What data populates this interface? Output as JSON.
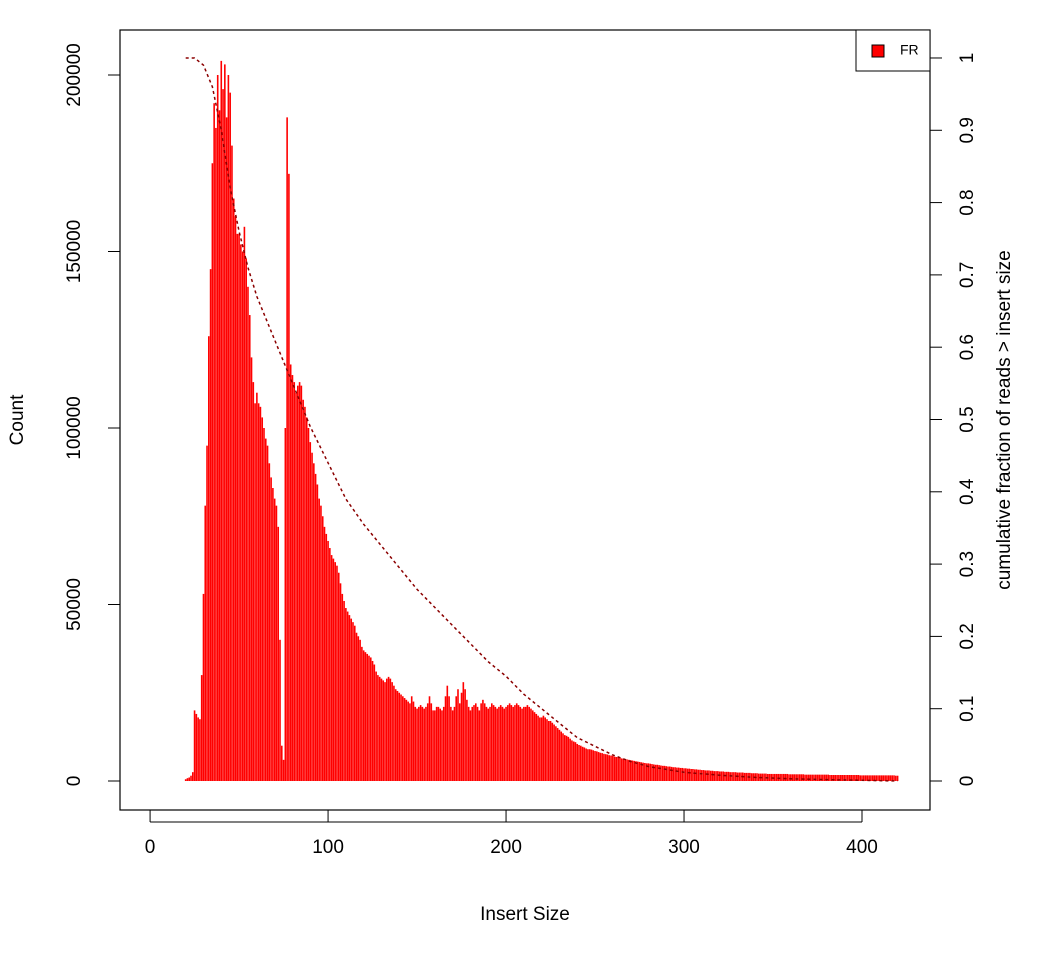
{
  "chart_data": {
    "type": "histogram-line",
    "xlabel": "Insert Size",
    "ylabel": "Count",
    "y2label": "cumulative fraction of reads > insert size",
    "xlim": [
      -16.9,
      438.2
    ],
    "xticks": [
      0,
      100,
      200,
      300,
      400
    ],
    "ylim": [
      -8215,
      212748
    ],
    "yticks": [
      0,
      50000,
      100000,
      150000,
      200000
    ],
    "y2lim": [
      -0.0401,
      1.0387
    ],
    "y2ticks": [
      0,
      0.1,
      0.2,
      0.3,
      0.4,
      0.5,
      0.6,
      0.7,
      0.8,
      0.9,
      1
    ],
    "legend": "top-right",
    "series": [
      {
        "name": "FR",
        "color": "#ff0000",
        "x": [
          20,
          21,
          22,
          23,
          24,
          25,
          26,
          27,
          28,
          29,
          30,
          31,
          32,
          33,
          34,
          35,
          36,
          37,
          38,
          39,
          40,
          41,
          42,
          43,
          44,
          45,
          46,
          47,
          48,
          49,
          50,
          51,
          52,
          53,
          54,
          55,
          56,
          57,
          58,
          59,
          60,
          61,
          62,
          63,
          64,
          65,
          66,
          67,
          68,
          69,
          70,
          71,
          72,
          73,
          74,
          75,
          76,
          77,
          78,
          79,
          80,
          81,
          82,
          83,
          84,
          85,
          86,
          87,
          88,
          89,
          90,
          91,
          92,
          93,
          94,
          95,
          96,
          97,
          98,
          99,
          100,
          101,
          102,
          103,
          104,
          105,
          106,
          107,
          108,
          109,
          110,
          111,
          112,
          113,
          114,
          115,
          116,
          117,
          118,
          119,
          120,
          121,
          122,
          123,
          124,
          125,
          126,
          127,
          128,
          129,
          130,
          131,
          132,
          133,
          134,
          135,
          136,
          137,
          138,
          139,
          140,
          141,
          142,
          143,
          144,
          145,
          146,
          147,
          148,
          149,
          150,
          151,
          152,
          153,
          154,
          155,
          156,
          157,
          158,
          159,
          160,
          161,
          162,
          163,
          164,
          165,
          166,
          167,
          168,
          169,
          170,
          171,
          172,
          173,
          174,
          175,
          176,
          177,
          178,
          179,
          180,
          181,
          182,
          183,
          184,
          185,
          186,
          187,
          188,
          189,
          190,
          191,
          192,
          193,
          194,
          195,
          196,
          197,
          198,
          199,
          200,
          201,
          202,
          203,
          204,
          205,
          206,
          207,
          208,
          209,
          210,
          211,
          212,
          213,
          214,
          215,
          216,
          217,
          218,
          219,
          220,
          221,
          222,
          223,
          224,
          225,
          226,
          227,
          228,
          229,
          230,
          231,
          232,
          233,
          234,
          235,
          236,
          237,
          238,
          239,
          240,
          241,
          242,
          243,
          244,
          245,
          246,
          247,
          248,
          249,
          250,
          251,
          252,
          253,
          254,
          255,
          256,
          257,
          258,
          259,
          260,
          261,
          262,
          263,
          264,
          265,
          266,
          267,
          268,
          269,
          270,
          271,
          272,
          273,
          274,
          275,
          276,
          277,
          278,
          279,
          280,
          281,
          282,
          283,
          284,
          285,
          286,
          287,
          288,
          289,
          290,
          291,
          292,
          293,
          294,
          295,
          296,
          297,
          298,
          299,
          300,
          301,
          302,
          303,
          304,
          305,
          306,
          307,
          308,
          309,
          310,
          311,
          312,
          313,
          314,
          315,
          316,
          317,
          318,
          319,
          320,
          321,
          322,
          323,
          324,
          325,
          326,
          327,
          328,
          329,
          330,
          331,
          332,
          333,
          334,
          335,
          336,
          337,
          338,
          339,
          340,
          341,
          342,
          343,
          344,
          345,
          346,
          347,
          348,
          349,
          350,
          351,
          352,
          353,
          354,
          355,
          356,
          357,
          358,
          359,
          360,
          361,
          362,
          363,
          364,
          365,
          366,
          367,
          368,
          369,
          370,
          371,
          372,
          373,
          374,
          375,
          376,
          377,
          378,
          379,
          380,
          381,
          382,
          383,
          384,
          385,
          386,
          387,
          388,
          389,
          390,
          391,
          392,
          393,
          394,
          395,
          396,
          397,
          398,
          399,
          400,
          401,
          402,
          403,
          404,
          405,
          406,
          407,
          408,
          409,
          410,
          411,
          412,
          413,
          414,
          415,
          416,
          417,
          418,
          419,
          420
        ],
        "values": [
          500,
          800,
          1000,
          1500,
          2500,
          20000,
          19000,
          18000,
          17500,
          30000,
          53000,
          78000,
          95000,
          126000,
          145000,
          175000,
          192000,
          185000,
          200000,
          190000,
          204000,
          196000,
          203000,
          188000,
          200000,
          195000,
          180000,
          165000,
          160000,
          155000,
          155000,
          152000,
          150000,
          157000,
          148000,
          140000,
          132000,
          120000,
          113000,
          107000,
          110000,
          107000,
          106000,
          103000,
          100000,
          97000,
          95000,
          90000,
          86000,
          83000,
          80000,
          78000,
          72000,
          40000,
          10000,
          6000,
          100000,
          188000,
          172000,
          118000,
          115000,
          113000,
          110000,
          112000,
          113000,
          112000,
          108000,
          106000,
          103000,
          100000,
          96000,
          93000,
          90000,
          87000,
          84000,
          80000,
          78000,
          75000,
          72000,
          70000,
          68000,
          66000,
          64000,
          63000,
          62000,
          61000,
          59000,
          56000,
          53000,
          51000,
          49000,
          48000,
          47000,
          46000,
          45000,
          44000,
          42000,
          41000,
          40000,
          38000,
          37000,
          36500,
          36000,
          35500,
          35000,
          34000,
          33000,
          31000,
          30000,
          29500,
          29000,
          28500,
          28000,
          29000,
          29500,
          29000,
          28000,
          27000,
          26000,
          25500,
          25000,
          24500,
          24000,
          23500,
          23000,
          22500,
          22000,
          24000,
          22500,
          21000,
          20500,
          21000,
          21500,
          21000,
          20500,
          21000,
          22000,
          24000,
          22000,
          20000,
          20000,
          21000,
          21000,
          20500,
          20000,
          21000,
          24000,
          27000,
          24000,
          21000,
          20000,
          21000,
          24000,
          26000,
          22000,
          25000,
          28000,
          26000,
          23000,
          21000,
          20000,
          21000,
          21500,
          22000,
          21000,
          20000,
          22000,
          23000,
          22000,
          21000,
          20500,
          21000,
          22000,
          21500,
          21000,
          20500,
          21000,
          21500,
          21000,
          20500,
          21000,
          21500,
          22000,
          21500,
          21000,
          21500,
          22000,
          21500,
          21000,
          20500,
          21000,
          21000,
          21500,
          21000,
          20500,
          20000,
          19500,
          19000,
          18500,
          18000,
          18000,
          18500,
          18000,
          17500,
          17000,
          17000,
          16500,
          16000,
          15500,
          15000,
          14500,
          14000,
          13500,
          13000,
          12800,
          12500,
          12000,
          11500,
          11200,
          11000,
          10500,
          10200,
          10000,
          9700,
          9500,
          9200,
          9000,
          9000,
          8900,
          8700,
          8500,
          8400,
          8200,
          8000,
          7900,
          7700,
          7600,
          7500,
          7300,
          7200,
          7100,
          6900,
          6800,
          6700,
          6600,
          6400,
          6300,
          6200,
          6100,
          6000,
          5900,
          5800,
          5700,
          5600,
          5500,
          5400,
          5300,
          5200,
          5100,
          5000,
          5000,
          4900,
          4800,
          4700,
          4600,
          4600,
          4500,
          4400,
          4300,
          4300,
          4200,
          4100,
          4100,
          4000,
          3900,
          3900,
          3800,
          3800,
          3700,
          3700,
          3600,
          3600,
          3500,
          3500,
          3400,
          3400,
          3300,
          3300,
          3200,
          3200,
          3100,
          3100,
          3000,
          3000,
          3000,
          2900,
          2900,
          2800,
          2800,
          2800,
          2700,
          2700,
          2700,
          2600,
          2600,
          2600,
          2500,
          2500,
          2500,
          2500,
          2400,
          2400,
          2400,
          2400,
          2300,
          2300,
          2300,
          2300,
          2200,
          2200,
          2200,
          2200,
          2100,
          2100,
          2100,
          2100,
          2100,
          2000,
          2000,
          2000,
          2000,
          2000,
          2000,
          2000,
          2000,
          2000,
          2000,
          2000,
          2000,
          1900,
          1900,
          1900,
          1900,
          1900,
          1900,
          1900,
          1900,
          1900,
          1800,
          1800,
          1800,
          1800,
          1800,
          1800,
          1800,
          1800,
          1800,
          1800,
          1800,
          1800,
          1800,
          1800,
          1700,
          1700,
          1700,
          1700,
          1700,
          1700,
          1700,
          1700,
          1700,
          1700,
          1700,
          1700,
          1700,
          1700,
          1700,
          1700,
          1700,
          1600,
          1600,
          1600,
          1600,
          1600,
          1600,
          1600,
          1600,
          1600,
          1600,
          1600,
          1600,
          1600,
          1600,
          1600,
          1600,
          1600,
          1600,
          1600,
          1600,
          1500,
          1500
        ]
      },
      {
        "color": "#8b0000",
        "axis": "y2",
        "linestyle": "dotted",
        "x": [
          20,
          25,
          30,
          35,
          40,
          45,
          50,
          55,
          60,
          65,
          70,
          75,
          80,
          85,
          90,
          100,
          110,
          120,
          130,
          140,
          150,
          160,
          170,
          180,
          190,
          200,
          210,
          220,
          230,
          240,
          250,
          260,
          270,
          280,
          300,
          320,
          340,
          360,
          380,
          400,
          420
        ],
        "values": [
          1,
          1,
          0.99,
          0.96,
          0.9,
          0.82,
          0.76,
          0.71,
          0.67,
          0.64,
          0.61,
          0.58,
          0.55,
          0.52,
          0.49,
          0.44,
          0.39,
          0.355,
          0.325,
          0.295,
          0.265,
          0.24,
          0.215,
          0.19,
          0.165,
          0.145,
          0.12,
          0.1,
          0.08,
          0.06,
          0.048,
          0.036,
          0.027,
          0.02,
          0.012,
          0.008,
          0.005,
          0.003,
          0.002,
          0.001,
          0
        ]
      }
    ]
  }
}
